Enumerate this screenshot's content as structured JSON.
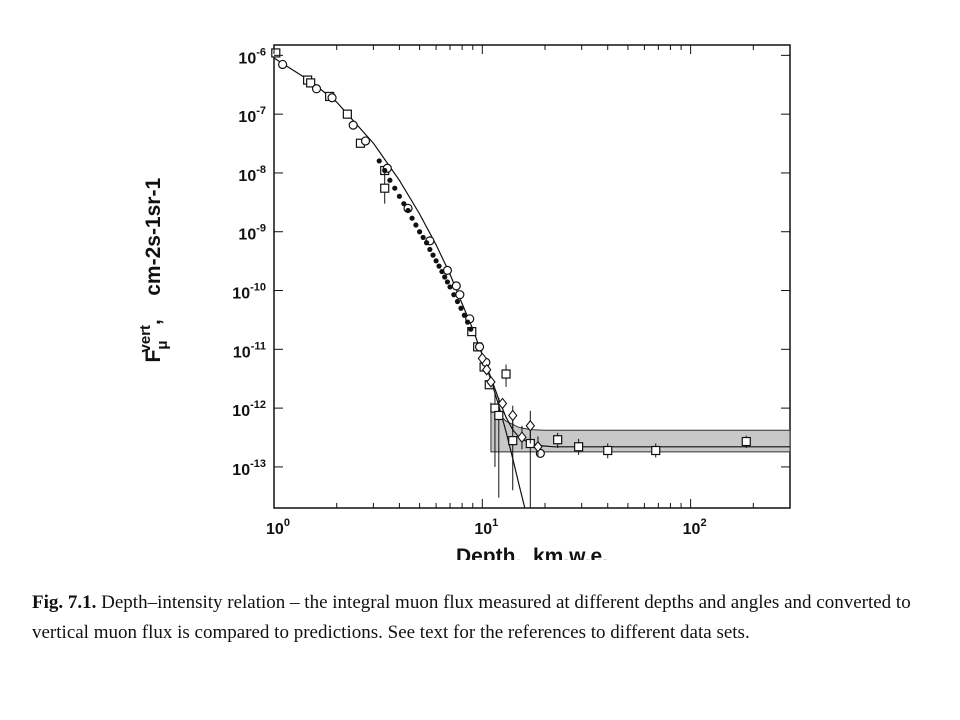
{
  "chart_data": {
    "type": "scatter",
    "x_scale": "log",
    "y_scale": "log",
    "xlim": [
      1,
      300
    ],
    "ylim": [
      2e-14,
      1.5e-06
    ],
    "grid": false,
    "xlabel": "Depth,  km.w.e.",
    "ylabel": {
      "main": "F",
      "sub": "μ",
      "sup": "vert",
      "units": ",    cm-2s-1sr-1"
    },
    "x_ticks": [
      {
        "value": 1,
        "base": "10",
        "exp": "0"
      },
      {
        "value": 10,
        "base": "10",
        "exp": "1"
      },
      {
        "value": 100,
        "base": "10",
        "exp": "2"
      }
    ],
    "y_ticks": [
      {
        "value": 1e-06,
        "base": "10",
        "exp": "-6"
      },
      {
        "value": 1e-07,
        "base": "10",
        "exp": "-7"
      },
      {
        "value": 1e-08,
        "base": "10",
        "exp": "-8"
      },
      {
        "value": 1e-09,
        "base": "10",
        "exp": "-9"
      },
      {
        "value": 1e-10,
        "base": "10",
        "exp": "-10"
      },
      {
        "value": 1e-11,
        "base": "10",
        "exp": "-11"
      },
      {
        "value": 1e-12,
        "base": "10",
        "exp": "-12"
      },
      {
        "value": 1e-13,
        "base": "10",
        "exp": "-13"
      }
    ],
    "prediction_curve": {
      "x": [
        1,
        1.5,
        2,
        3,
        4,
        5,
        6,
        7,
        8,
        9,
        10,
        11,
        12,
        13,
        14,
        15,
        17,
        19,
        22,
        30,
        50,
        100,
        200,
        300
      ],
      "y": [
        9e-07,
        3.6e-07,
        1.6e-07,
        3.2e-08,
        7.5e-09,
        2e-09,
        6e-10,
        1.9e-10,
        6e-11,
        2.2e-11,
        8e-12,
        3.3e-12,
        1.4e-12,
        7e-13,
        4.3e-13,
        3.2e-13,
        2.5e-13,
        2.3e-13,
        2.2e-13,
        2.2e-13,
        2.2e-13,
        2.2e-13,
        2.2e-13,
        2.2e-13
      ]
    },
    "atmospheric_only_curve": {
      "x": [
        10,
        11,
        12,
        13,
        14,
        15,
        16
      ],
      "y": [
        8e-12,
        3e-12,
        1.1e-12,
        4e-13,
        1.4e-13,
        5e-14,
        2e-14
      ]
    },
    "neutrino_band": {
      "x": [
        11,
        12,
        13,
        15,
        17,
        20,
        25,
        40,
        100,
        300
      ],
      "y_low": [
        1.8e-13,
        1.8e-13,
        1.8e-13,
        1.8e-13,
        1.8e-13,
        1.8e-13,
        1.8e-13,
        1.8e-13,
        1.8e-13,
        1.8e-13
      ],
      "y_high": [
        1.2e-12,
        8e-13,
        6e-13,
        4.7e-13,
        4.3e-13,
        4.2e-13,
        4.2e-13,
        4.2e-13,
        4.2e-13,
        4.2e-13
      ]
    },
    "series": [
      {
        "marker": "square",
        "points": [
          {
            "x": 1.02,
            "y": 1.1e-06
          },
          {
            "x": 1.45,
            "y": 3.8e-07
          },
          {
            "x": 1.5,
            "y": 3.4e-07
          },
          {
            "x": 1.85,
            "y": 2e-07
          },
          {
            "x": 2.25,
            "y": 1e-07
          },
          {
            "x": 2.6,
            "y": 3.2e-08
          },
          {
            "x": 3.4,
            "y": 1.1e-08
          },
          {
            "x": 3.4,
            "y": 5.5e-09,
            "y_err_low": 3e-09,
            "y_err_high": 1e-08
          },
          {
            "x": 8.9,
            "y": 2e-11
          },
          {
            "x": 9.5,
            "y": 1.1e-11
          },
          {
            "x": 10.2,
            "y": 5e-12
          },
          {
            "x": 10.8,
            "y": 2.5e-12
          },
          {
            "x": 11.5,
            "y": 1e-12,
            "y_err_low": 1e-13,
            "y_err_high": 1.8e-12
          },
          {
            "x": 12.0,
            "y": 7.5e-13,
            "y_err_low": 3e-14,
            "y_err_high": 1.5e-12
          },
          {
            "x": 13.0,
            "y": 3.8e-12,
            "y_err_low": 2.3e-12,
            "y_err_high": 5.5e-12
          },
          {
            "x": 14.0,
            "y": 2.8e-13,
            "y_err_low": 4e-14,
            "y_err_high": 6e-13
          },
          {
            "x": 17.0,
            "y": 2.5e-13,
            "y_err_low": 2e-14,
            "y_err_high": 5e-13
          },
          {
            "x": 23.0,
            "y": 2.9e-13,
            "y_err_low": 2.1e-13,
            "y_err_high": 3.8e-13
          },
          {
            "x": 29.0,
            "y": 2.2e-13,
            "y_err_low": 1.6e-13,
            "y_err_high": 3e-13
          },
          {
            "x": 40.0,
            "y": 1.9e-13,
            "y_err_low": 1.4e-13,
            "y_err_high": 2.5e-13
          },
          {
            "x": 68.0,
            "y": 1.9e-13,
            "y_err_low": 1.45e-13,
            "y_err_high": 2.5e-13
          },
          {
            "x": 185.0,
            "y": 2.7e-13,
            "y_err_low": 2.1e-13,
            "y_err_high": 3.4e-13
          }
        ]
      },
      {
        "marker": "circle",
        "points": [
          {
            "x": 1.1,
            "y": 7e-07
          },
          {
            "x": 1.6,
            "y": 2.7e-07
          },
          {
            "x": 1.9,
            "y": 1.9e-07
          },
          {
            "x": 2.4,
            "y": 6.5e-08
          },
          {
            "x": 2.75,
            "y": 3.5e-08
          },
          {
            "x": 3.5,
            "y": 1.2e-08
          },
          {
            "x": 4.4,
            "y": 2.5e-09
          },
          {
            "x": 5.6,
            "y": 7e-10
          },
          {
            "x": 6.8,
            "y": 2.2e-10
          },
          {
            "x": 7.5,
            "y": 1.2e-10
          },
          {
            "x": 7.8,
            "y": 8.5e-11
          },
          {
            "x": 8.7,
            "y": 3.3e-11
          },
          {
            "x": 9.7,
            "y": 1.1e-11
          },
          {
            "x": 10.4,
            "y": 6e-12
          },
          {
            "x": 19.0,
            "y": 1.7e-13
          }
        ]
      },
      {
        "marker": "diamond",
        "points": [
          {
            "x": 10.0,
            "y": 7e-12
          },
          {
            "x": 10.5,
            "y": 4.5e-12
          },
          {
            "x": 11.0,
            "y": 2.8e-12
          },
          {
            "x": 12.5,
            "y": 1.2e-12
          },
          {
            "x": 14.0,
            "y": 7.5e-13,
            "y_err_low": 4e-13,
            "y_err_high": 1.1e-12
          },
          {
            "x": 15.5,
            "y": 3.2e-13,
            "y_err_low": 2e-13,
            "y_err_high": 5e-13
          },
          {
            "x": 17.0,
            "y": 5e-13,
            "y_err_low": 2.5e-13,
            "y_err_high": 9e-13
          },
          {
            "x": 18.5,
            "y": 2.2e-13,
            "y_err_low": 1.5e-13,
            "y_err_high": 3.3e-13
          }
        ]
      },
      {
        "marker": "filled",
        "points": [
          {
            "x": 3.2,
            "y": 1.6e-08
          },
          {
            "x": 3.4,
            "y": 1.1e-08
          },
          {
            "x": 3.6,
            "y": 7.5e-09
          },
          {
            "x": 3.8,
            "y": 5.5e-09
          },
          {
            "x": 4.0,
            "y": 4e-09
          },
          {
            "x": 4.2,
            "y": 3e-09
          },
          {
            "x": 4.4,
            "y": 2.3e-09
          },
          {
            "x": 4.6,
            "y": 1.7e-09
          },
          {
            "x": 4.8,
            "y": 1.3e-09
          },
          {
            "x": 5.0,
            "y": 1e-09
          },
          {
            "x": 5.2,
            "y": 8e-10
          },
          {
            "x": 5.4,
            "y": 6.5e-10
          },
          {
            "x": 5.6,
            "y": 5e-10
          },
          {
            "x": 5.8,
            "y": 4e-10
          },
          {
            "x": 6.0,
            "y": 3.2e-10
          },
          {
            "x": 6.2,
            "y": 2.6e-10
          },
          {
            "x": 6.4,
            "y": 2.1e-10
          },
          {
            "x": 6.6,
            "y": 1.7e-10
          },
          {
            "x": 6.8,
            "y": 1.4e-10
          },
          {
            "x": 7.0,
            "y": 1.15e-10
          },
          {
            "x": 7.3,
            "y": 8.5e-11
          },
          {
            "x": 7.6,
            "y": 6.5e-11
          },
          {
            "x": 7.9,
            "y": 5e-11
          },
          {
            "x": 8.2,
            "y": 3.8e-11
          },
          {
            "x": 8.5,
            "y": 2.9e-11
          },
          {
            "x": 8.8,
            "y": 2.2e-11
          }
        ]
      }
    ]
  },
  "caption": {
    "label": "Fig. 7.1.",
    "text": " Depth–intensity relation – the integral muon flux measured at different depths and angles and converted to vertical muon flux is compared to predictions. See text for the references to different data sets."
  }
}
